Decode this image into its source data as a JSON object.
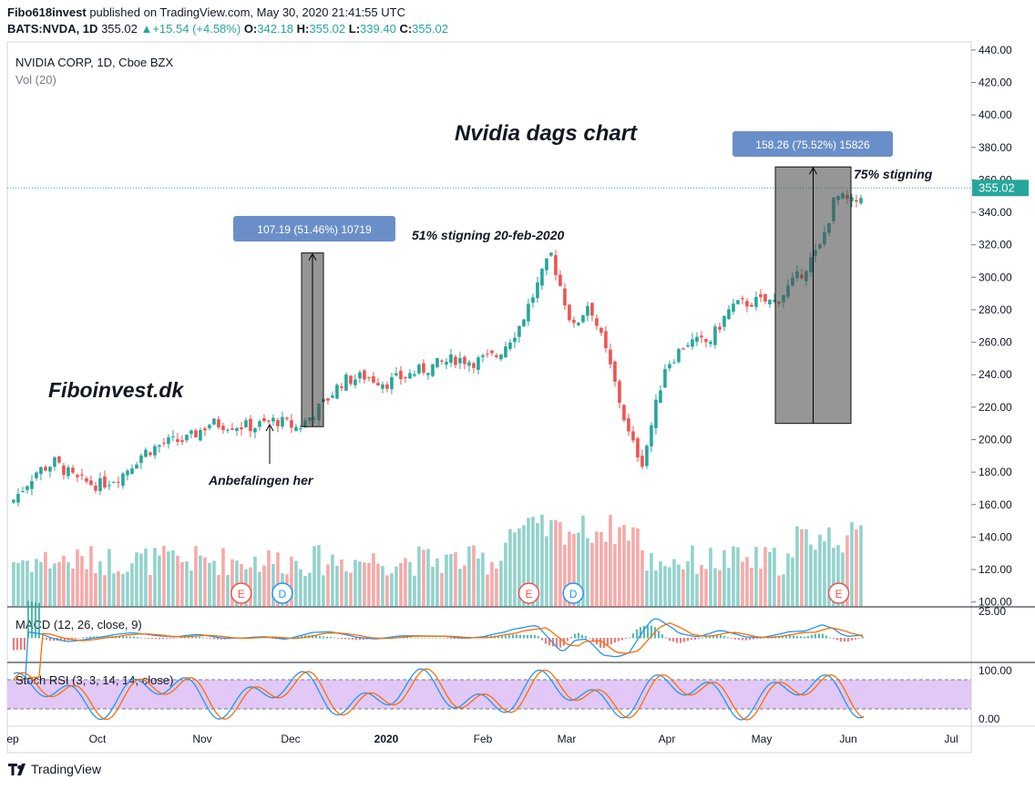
{
  "header": {
    "author": "Fibo618invest",
    "published_text": "published on TradingView.com, May 30, 2020 21:41:55 UTC",
    "symbol": "BATS:NVDA, 1D",
    "price": "355.02",
    "change": "+15.54 (+4.58%)",
    "o_label": "O:",
    "o": "342.18",
    "h_label": "H:",
    "h": "355.02",
    "l_label": "L:",
    "l": "339.40",
    "c_label": "C:",
    "c": "355.02"
  },
  "chart_data": {
    "type": "candlestick",
    "legend_title": "NVIDIA CORP, 1D, Cboe BZX",
    "volume_label": "Vol (20)",
    "title": "Nvidia dags chart",
    "watermark": "Fiboinvest.dk",
    "x_tick_labels": [
      "ep",
      "Oct",
      "Nov",
      "Dec",
      "2020",
      "Feb",
      "Mar",
      "Apr",
      "May",
      "Jun",
      "Jul"
    ],
    "y_ticks": [
      440,
      420,
      400,
      380,
      360,
      340,
      320,
      300,
      280,
      260,
      240,
      220,
      200,
      180,
      160,
      140,
      120,
      100
    ],
    "y_tick_labels": [
      "440.00",
      "420.00",
      "400.00",
      "380.00",
      "360.00",
      "340.00",
      "320.00",
      "300.00",
      "280.00",
      "260.00",
      "240.00",
      "220.00",
      "200.00",
      "180.00",
      "160.00",
      "140.00",
      "120.00",
      "100.00"
    ],
    "ylim": [
      97,
      445
    ],
    "last_price": 355.02,
    "last_price_label": "355.02",
    "close_path": [
      [
        "2019-09-03",
        163
      ],
      [
        "2019-09-10",
        180
      ],
      [
        "2019-09-16",
        186
      ],
      [
        "2019-09-23",
        175
      ],
      [
        "2019-09-30",
        172
      ],
      [
        "2019-10-07",
        178
      ],
      [
        "2019-10-14",
        192
      ],
      [
        "2019-10-21",
        198
      ],
      [
        "2019-10-28",
        200
      ],
      [
        "2019-11-04",
        210
      ],
      [
        "2019-11-11",
        209
      ],
      [
        "2019-11-18",
        208
      ],
      [
        "2019-11-25",
        212
      ],
      [
        "2019-12-02",
        207
      ],
      [
        "2019-12-09",
        220
      ],
      [
        "2019-12-16",
        236
      ],
      [
        "2019-12-23",
        239
      ],
      [
        "2019-12-30",
        235
      ],
      [
        "2020-01-06",
        240
      ],
      [
        "2020-01-13",
        245
      ],
      [
        "2020-01-21",
        250
      ],
      [
        "2020-01-27",
        248
      ],
      [
        "2020-02-03",
        252
      ],
      [
        "2020-02-10",
        270
      ],
      [
        "2020-02-20",
        314
      ],
      [
        "2020-02-27",
        268
      ],
      [
        "2020-03-03",
        285
      ],
      [
        "2020-03-09",
        250
      ],
      [
        "2020-03-16",
        200
      ],
      [
        "2020-03-20",
        186
      ],
      [
        "2020-03-27",
        245
      ],
      [
        "2020-04-03",
        260
      ],
      [
        "2020-04-10",
        260
      ],
      [
        "2020-04-17",
        282
      ],
      [
        "2020-04-24",
        285
      ],
      [
        "2020-05-01",
        285
      ],
      [
        "2020-05-08",
        300
      ],
      [
        "2020-05-15",
        318
      ],
      [
        "2020-05-20",
        350
      ],
      [
        "2020-05-26",
        345
      ],
      [
        "2020-05-29",
        355.02
      ]
    ],
    "earnings_markers": [
      {
        "label": "E",
        "date": "2019-11-14"
      },
      {
        "label": "D",
        "date": "2019-11-27"
      },
      {
        "label": "E",
        "date": "2020-02-13"
      },
      {
        "label": "D",
        "date": "2020-02-27"
      },
      {
        "label": "E",
        "date": "2020-05-21"
      }
    ],
    "annotations": {
      "measure_1": {
        "label": "107.19 (51.46%) 10719",
        "from": 208,
        "to": 315
      },
      "measure_2": {
        "label": "158.26 (75.52%) 15826",
        "from": 210,
        "to": 368
      },
      "text_51": "51% stigning 20-feb-2020",
      "text_75": "75% stigning",
      "text_rec": "Anbefalingen her"
    },
    "macd": {
      "label": "MACD (12, 26, close, 9)",
      "tick_label": "25.00"
    },
    "stoch": {
      "label": "Stoch RSI (3, 3, 14, 14, close)",
      "tick_labels": [
        "100.00",
        "0.00"
      ]
    }
  },
  "footer": {
    "brand": "TradingView"
  },
  "colors": {
    "up": "#26a69a",
    "down": "#ef5350",
    "badge": "#6a8fc8",
    "stoch_fill": "#e1c8f7",
    "macd_line": "#2196f3",
    "signal_line": "#ff6d00"
  }
}
